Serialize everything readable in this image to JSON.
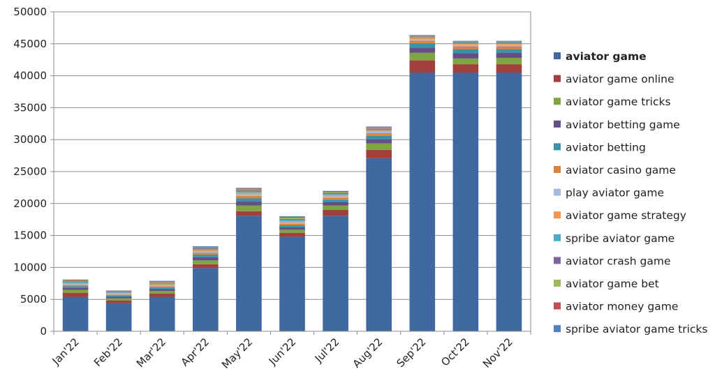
{
  "chart_data": {
    "type": "bar",
    "stacked": true,
    "categories": [
      "Jan'22",
      "Feb'22",
      "Mar'22",
      "Apr'22",
      "May'22",
      "Jun'22",
      "Jul'22",
      "Aug'22",
      "Sep'22",
      "Oct'22",
      "Nov'22"
    ],
    "ylim": [
      0,
      50000
    ],
    "yticks": [
      0,
      5000,
      10000,
      15000,
      20000,
      25000,
      30000,
      35000,
      40000,
      45000,
      50000
    ],
    "grid": true,
    "legend_position": "right",
    "series": [
      {
        "name": "aviator game",
        "color": "#4169A1",
        "values": [
          5400,
          4400,
          5400,
          9900,
          18100,
          14800,
          18100,
          27100,
          40500,
          40500,
          40500
        ]
      },
      {
        "name": "aviator game online",
        "color": "#A33E3B",
        "values": [
          600,
          400,
          500,
          600,
          700,
          600,
          900,
          1300,
          1900,
          1300,
          1300
        ]
      },
      {
        "name": "aviator game tricks",
        "color": "#80A344",
        "values": [
          500,
          350,
          400,
          600,
          900,
          500,
          700,
          1000,
          1200,
          900,
          1000
        ]
      },
      {
        "name": "aviator betting game",
        "color": "#634E86",
        "values": [
          300,
          250,
          300,
          500,
          600,
          400,
          500,
          700,
          800,
          800,
          800
        ]
      },
      {
        "name": "aviator betting",
        "color": "#3A91A8",
        "values": [
          250,
          200,
          250,
          400,
          500,
          300,
          400,
          500,
          700,
          700,
          600
        ]
      },
      {
        "name": "aviator casino game",
        "color": "#D9833C",
        "values": [
          200,
          150,
          200,
          300,
          400,
          250,
          300,
          400,
          400,
          400,
          400
        ]
      },
      {
        "name": "play aviator game",
        "color": "#A7B9DA",
        "values": [
          150,
          120,
          150,
          200,
          250,
          200,
          250,
          250,
          200,
          200,
          200
        ]
      },
      {
        "name": "aviator game strategy",
        "color": "#F5964F",
        "values": [
          150,
          110,
          150,
          200,
          250,
          200,
          200,
          200,
          200,
          200,
          200
        ]
      },
      {
        "name": "spribe aviator game",
        "color": "#4BACC6",
        "values": [
          150,
          110,
          150,
          150,
          200,
          200,
          150,
          150,
          150,
          150,
          150
        ]
      },
      {
        "name": "aviator crash game",
        "color": "#8064A2",
        "values": [
          120,
          100,
          120,
          150,
          150,
          150,
          150,
          150,
          100,
          100,
          100
        ]
      },
      {
        "name": "aviator game bet",
        "color": "#9BBB59",
        "values": [
          100,
          80,
          100,
          100,
          150,
          150,
          120,
          100,
          100,
          80,
          80
        ]
      },
      {
        "name": "aviator money game",
        "color": "#C0504D",
        "values": [
          100,
          80,
          100,
          100,
          150,
          150,
          120,
          100,
          80,
          80,
          80
        ]
      },
      {
        "name": "spribe aviator game tricks",
        "color": "#4F81BD",
        "values": [
          80,
          50,
          80,
          100,
          100,
          100,
          80,
          100,
          50,
          50,
          50
        ]
      }
    ]
  }
}
